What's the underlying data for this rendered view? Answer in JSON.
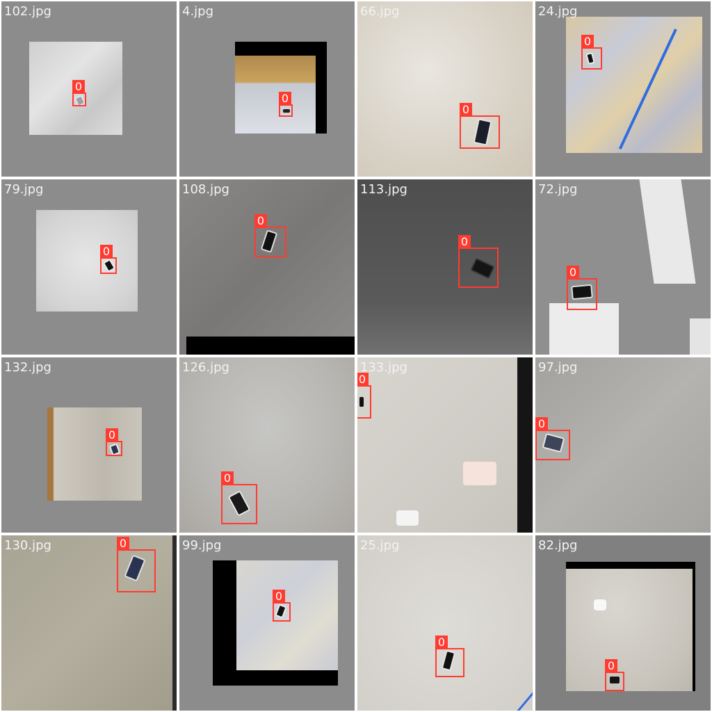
{
  "grid_title": "",
  "class_label": "0",
  "colors": {
    "box": "#ff3b30",
    "label_text": "#ffffff",
    "filename": "#f2f2f2"
  },
  "tiles": [
    {
      "filename": "102.jpg",
      "label": "0"
    },
    {
      "filename": "4.jpg",
      "label": "0"
    },
    {
      "filename": "66.jpg",
      "label": "0"
    },
    {
      "filename": "24.jpg",
      "label": "0"
    },
    {
      "filename": "79.jpg",
      "label": "0"
    },
    {
      "filename": "108.jpg",
      "label": "0"
    },
    {
      "filename": "113.jpg",
      "label": "0"
    },
    {
      "filename": "72.jpg",
      "label": "0"
    },
    {
      "filename": "132.jpg",
      "label": "0"
    },
    {
      "filename": "126.jpg",
      "label": "0"
    },
    {
      "filename": "133.jpg",
      "label": "0"
    },
    {
      "filename": "97.jpg",
      "label": "0"
    },
    {
      "filename": "130.jpg",
      "label": "0"
    },
    {
      "filename": "99.jpg",
      "label": "0"
    },
    {
      "filename": "25.jpg",
      "label": "0"
    },
    {
      "filename": "82.jpg",
      "label": "0"
    }
  ]
}
